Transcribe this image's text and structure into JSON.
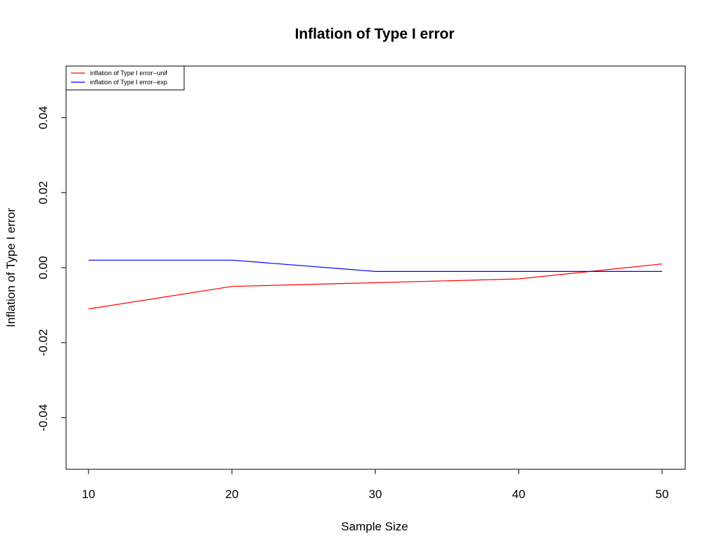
{
  "chart_data": {
    "type": "line",
    "title": "Inflation of Type I error",
    "xlabel": "Sample Size",
    "ylabel": "Inflation of Type I error",
    "x": [
      10,
      20,
      30,
      40,
      50
    ],
    "xlim": [
      10,
      50
    ],
    "ylim": [
      -0.05,
      0.05
    ],
    "x_ticks": [
      10,
      20,
      30,
      40,
      50
    ],
    "y_ticks": [
      -0.04,
      -0.02,
      0.0,
      0.02,
      0.04
    ],
    "x_tick_labels": [
      "10",
      "20",
      "30",
      "40",
      "50"
    ],
    "y_tick_labels": [
      "-0.04",
      "-0.02",
      "0.00",
      "0.02",
      "0.04"
    ],
    "grid": false,
    "legend_position": "top-left",
    "series": [
      {
        "name": "inflation of Type I error--unif",
        "color": "#ff0000",
        "values": [
          -0.011,
          -0.005,
          -0.004,
          -0.003,
          0.001
        ]
      },
      {
        "name": "inflation of Type I error--exp",
        "color": "#0000ff",
        "values": [
          0.002,
          0.002,
          -0.001,
          -0.001,
          -0.001
        ]
      }
    ]
  }
}
